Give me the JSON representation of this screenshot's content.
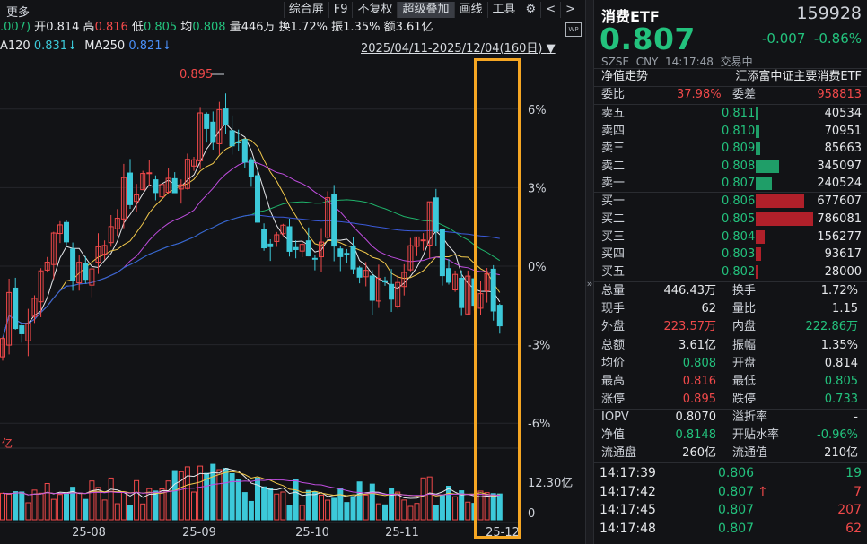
{
  "toolbar": {
    "more": "更多",
    "items": [
      "综合屏",
      "F9",
      "不复权",
      "超级叠加",
      "画线",
      "工具"
    ],
    "active": "超级叠加",
    "gear_icon": "gear-icon",
    "prev_icon": "chevron-left-icon",
    "next_icon": "chevron-right-icon"
  },
  "quote": {
    "prefix": ".007)",
    "open_label": "开",
    "open": "0.814",
    "high_label": "高",
    "high": "0.816",
    "low_label": "低",
    "low": "0.805",
    "avg_label": "均",
    "avg": "0.808",
    "vol_label": "量",
    "vol": "446万",
    "turnover_label": "换",
    "turnover": "1.72%",
    "amp_label": "振",
    "amp": "1.35%",
    "amount_label": "额",
    "amount": "3.61亿"
  },
  "ma": {
    "ma120_label": "A120",
    "ma120": "0.831↓",
    "ma250_label": "MA250",
    "ma250": "0.821↓"
  },
  "range": "2025/04/11-2025/12/04(160日)",
  "chart_data": {
    "type": "candlestick",
    "y_axis_labels": [
      "6%",
      "3%",
      "0%",
      "-3%",
      "-6%"
    ],
    "x_axis_labels": [
      "25-08",
      "25-09",
      "25-10",
      "25-11",
      "25-12"
    ],
    "peak_label": "0.895",
    "volume_axis_labels": [
      "12.30亿",
      "0"
    ],
    "volume_unit": "亿"
  },
  "panel": {
    "name": "消费ETF",
    "code": "159928",
    "price": "0.807",
    "change": "-0.007",
    "change_pct": "-0.86%",
    "market": "SZSE",
    "currency": "CNY",
    "time": "14:17:48",
    "status": "交易中",
    "tab": "净值走势",
    "fund_name": "汇添富中证主要消费ETF",
    "webi_label": "委比",
    "webi": "37.98%",
    "weicha_label": "委差",
    "weicha": "958813",
    "asks": [
      {
        "label": "卖五",
        "price": "0.811",
        "vol": "40534",
        "frac": 0.03
      },
      {
        "label": "卖四",
        "price": "0.810",
        "vol": "70951",
        "frac": 0.05
      },
      {
        "label": "卖三",
        "price": "0.809",
        "vol": "85663",
        "frac": 0.06
      },
      {
        "label": "卖二",
        "price": "0.808",
        "vol": "345097",
        "frac": 0.33
      },
      {
        "label": "卖一",
        "price": "0.807",
        "vol": "240524",
        "frac": 0.22
      }
    ],
    "bids": [
      {
        "label": "买一",
        "price": "0.806",
        "vol": "677607",
        "frac": 0.68
      },
      {
        "label": "买二",
        "price": "0.805",
        "vol": "786081",
        "frac": 0.8
      },
      {
        "label": "买三",
        "price": "0.804",
        "vol": "156277",
        "frac": 0.13
      },
      {
        "label": "买四",
        "price": "0.803",
        "vol": "93617",
        "frac": 0.07
      },
      {
        "label": "买五",
        "price": "0.802",
        "vol": "28000",
        "frac": 0.02
      }
    ],
    "stats": [
      [
        "总量",
        "446.43万",
        "white",
        "换手",
        "1.72%",
        "white"
      ],
      [
        "现手",
        "62",
        "white",
        "量比",
        "1.15",
        "white"
      ],
      [
        "外盘",
        "223.57万",
        "red",
        "内盘",
        "222.86万",
        "green"
      ],
      [
        "总额",
        "3.61亿",
        "white",
        "振幅",
        "1.35%",
        "white"
      ],
      [
        "均价",
        "0.808",
        "green",
        "开盘",
        "0.814",
        "white"
      ],
      [
        "最高",
        "0.816",
        "red",
        "最低",
        "0.805",
        "green"
      ],
      [
        "涨停",
        "0.895",
        "red",
        "跌停",
        "0.733",
        "green"
      ]
    ],
    "stats2": [
      [
        "IOPV",
        "0.8070",
        "white",
        "溢折率",
        "-",
        "white"
      ],
      [
        "净值",
        "0.8148",
        "green",
        "开贴水率",
        "-0.96%",
        "green"
      ],
      [
        "流通盘",
        "260亿",
        "white",
        "流通值",
        "210亿",
        "white"
      ]
    ],
    "ticks": [
      {
        "time": "14:17:39",
        "price": "0.806",
        "vol": "19",
        "vcolor": "green",
        "arrow": ""
      },
      {
        "time": "14:17:42",
        "price": "0.807",
        "vol": "7",
        "vcolor": "red",
        "arrow": "↑"
      },
      {
        "time": "14:17:45",
        "price": "0.807",
        "vol": "207",
        "vcolor": "red",
        "arrow": ""
      },
      {
        "time": "14:17:48",
        "price": "0.807",
        "vol": "62",
        "vcolor": "red",
        "arrow": ""
      }
    ]
  },
  "colors": {
    "up": "#f0494a",
    "down": "#3cc9d9",
    "highlight": "#f5a623"
  }
}
